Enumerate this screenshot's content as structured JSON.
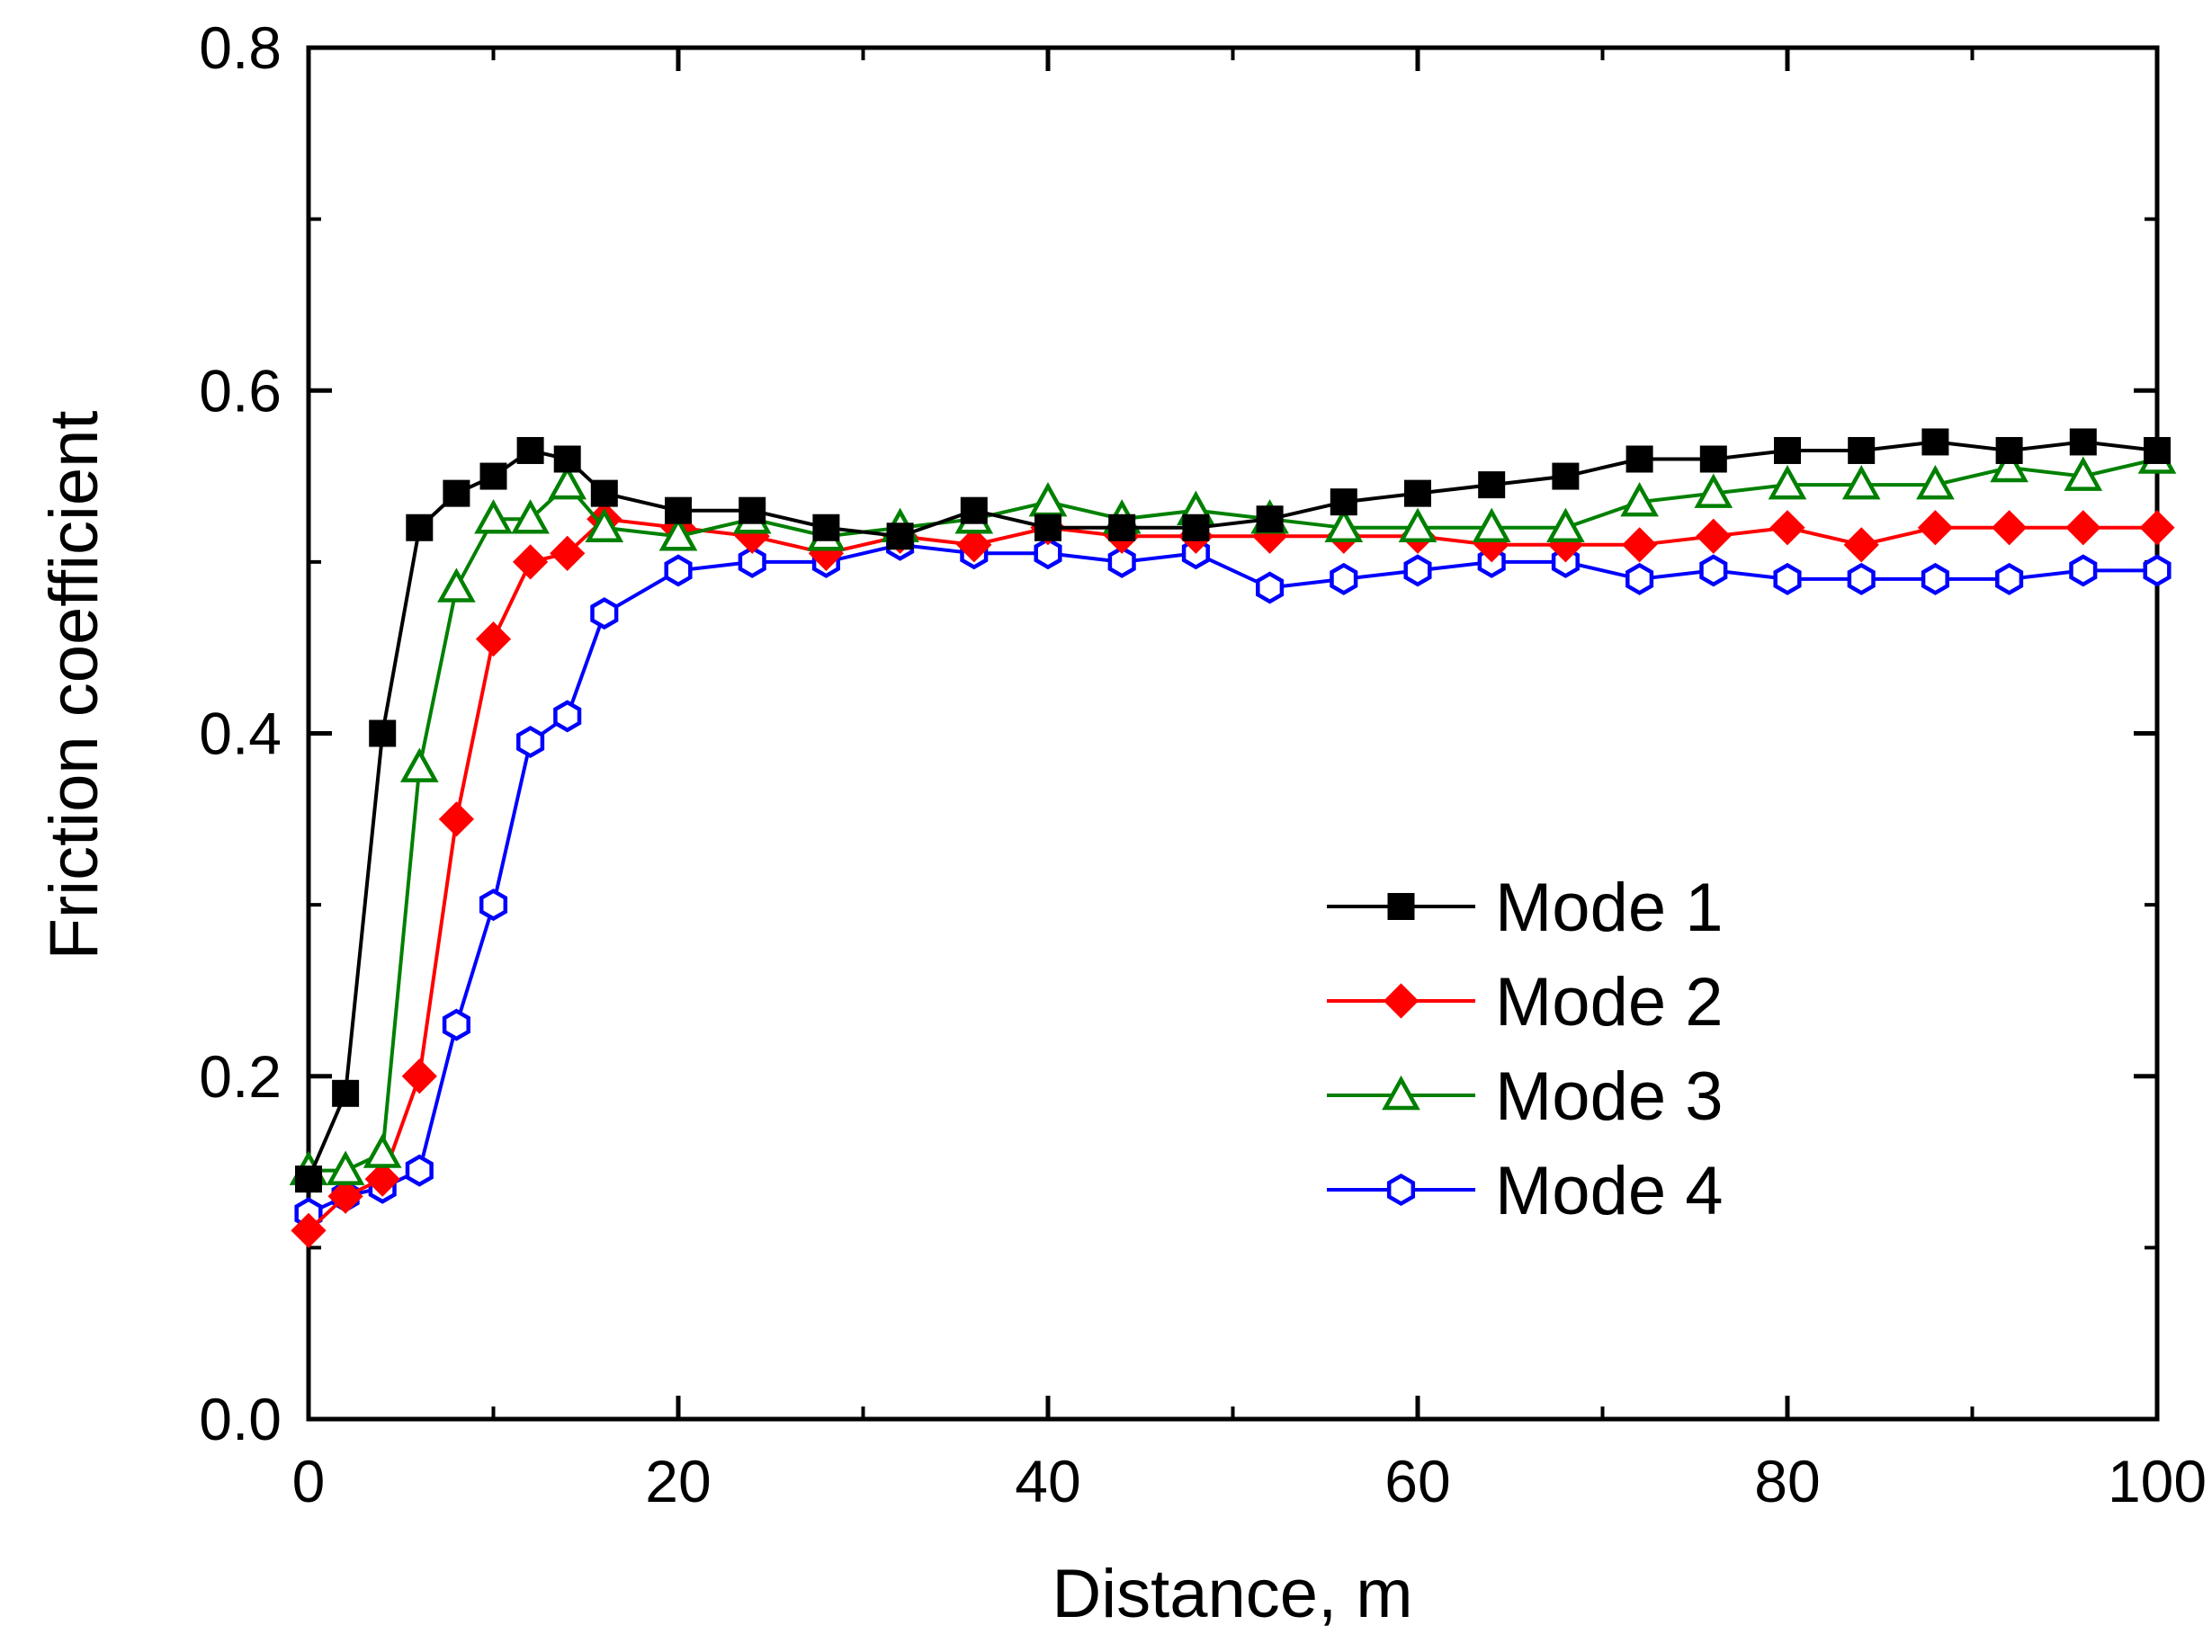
{
  "chart_data": {
    "type": "line",
    "title": "",
    "xlabel": "Distance, m",
    "ylabel": "Friction coefficient",
    "xlim": [
      0,
      100
    ],
    "ylim": [
      0.0,
      0.8
    ],
    "xticks": [
      0,
      20,
      40,
      60,
      80,
      100
    ],
    "xtick_labels": [
      "0",
      "20",
      "40",
      "60",
      "80",
      "100"
    ],
    "yticks": [
      0.0,
      0.2,
      0.4,
      0.6,
      0.8
    ],
    "ytick_labels": [
      "0.0",
      "0.2",
      "0.4",
      "0.6",
      "0.8"
    ],
    "grid": false,
    "legend_position": "right-center",
    "x": [
      0,
      2,
      4,
      6,
      8,
      10,
      12,
      14,
      16,
      20,
      24,
      28,
      32,
      36,
      40,
      44,
      48,
      52,
      56,
      60,
      64,
      68,
      72,
      76,
      80,
      84,
      88,
      92,
      96,
      100
    ],
    "series": [
      {
        "name": "Mode 1",
        "color": "#000000",
        "marker": "square-filled",
        "values": [
          0.14,
          0.19,
          0.4,
          0.52,
          0.54,
          0.55,
          0.565,
          0.56,
          0.54,
          0.53,
          0.53,
          0.52,
          0.515,
          0.53,
          0.52,
          0.52,
          0.52,
          0.525,
          0.535,
          0.54,
          0.545,
          0.55,
          0.56,
          0.56,
          0.565,
          0.565,
          0.57,
          0.565,
          0.57,
          0.565
        ]
      },
      {
        "name": "Mode 2",
        "color": "#ff0000",
        "marker": "diamond-filled",
        "values": [
          0.11,
          0.13,
          0.14,
          0.2,
          0.35,
          0.455,
          0.5,
          0.505,
          0.525,
          0.52,
          0.515,
          0.505,
          0.515,
          0.51,
          0.52,
          0.515,
          0.515,
          0.515,
          0.515,
          0.515,
          0.51,
          0.51,
          0.51,
          0.515,
          0.52,
          0.51,
          0.52,
          0.52,
          0.52,
          0.52
        ]
      },
      {
        "name": "Mode 3",
        "color": "#008000",
        "marker": "triangle-open",
        "values": [
          0.145,
          0.145,
          0.155,
          0.38,
          0.485,
          0.525,
          0.525,
          0.545,
          0.52,
          0.515,
          0.525,
          0.515,
          0.52,
          0.525,
          0.535,
          0.525,
          0.53,
          0.525,
          0.52,
          0.52,
          0.52,
          0.52,
          0.535,
          0.54,
          0.545,
          0.545,
          0.545,
          0.555,
          0.55,
          0.56
        ]
      },
      {
        "name": "Mode 4",
        "color": "#0000ff",
        "marker": "hexagon-open",
        "values": [
          0.12,
          0.13,
          0.135,
          0.145,
          0.23,
          0.3,
          0.395,
          0.41,
          0.47,
          0.495,
          0.5,
          0.5,
          0.51,
          0.505,
          0.505,
          0.5,
          0.505,
          0.485,
          0.49,
          0.495,
          0.5,
          0.5,
          0.49,
          0.495,
          0.49,
          0.49,
          0.49,
          0.49,
          0.495,
          0.495
        ]
      }
    ]
  }
}
